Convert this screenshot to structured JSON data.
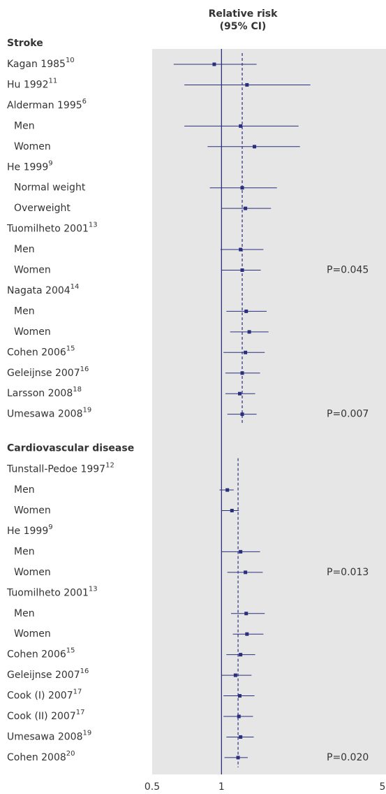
{
  "chart_data": {
    "type": "forest",
    "title": "Relative risk",
    "subtitle": "(95% CI)",
    "log_scale": true,
    "xlim": [
      0.5,
      5
    ],
    "xticks": [
      0.5,
      1,
      5
    ],
    "reference": 1,
    "color": "#2a2f7c",
    "background": "#e6e6e6",
    "groups": [
      {
        "name": "Stroke",
        "pooled": 1.23,
        "studies": [
          {
            "label": "Kagan 1985",
            "ref": "10",
            "rr": 0.93,
            "ci": [
              0.62,
              1.42
            ]
          },
          {
            "label": "Hu 1992",
            "ref": "11",
            "rr": 1.29,
            "ci": [
              0.69,
              2.43
            ]
          },
          {
            "label": "Alderman 1995",
            "ref": "6",
            "subgroups": [
              {
                "label": "Men",
                "rr": 1.21,
                "ci": [
                  0.69,
                  2.16
                ]
              },
              {
                "label": "Women",
                "rr": 1.39,
                "ci": [
                  0.87,
                  2.19
                ]
              }
            ]
          },
          {
            "label": "He 1999",
            "ref": "9",
            "subgroups": [
              {
                "label": "Normal weight",
                "rr": 1.23,
                "ci": [
                  0.89,
                  1.74
                ]
              },
              {
                "label": "Overweight",
                "rr": 1.27,
                "ci": [
                  1.0,
                  1.64
                ]
              }
            ]
          },
          {
            "label": "Tuomilheto 2001",
            "ref": "13",
            "subgroups": [
              {
                "label": "Men",
                "rr": 1.21,
                "ci": [
                  0.99,
                  1.52
                ]
              },
              {
                "label": "Women",
                "rr": 1.23,
                "ci": [
                  1.0,
                  1.48
                ],
                "p_value": "P=0.045"
              }
            ]
          },
          {
            "label": "Nagata 2004",
            "ref": "14",
            "subgroups": [
              {
                "label": "Men",
                "rr": 1.28,
                "ci": [
                  1.05,
                  1.57
                ]
              },
              {
                "label": "Women",
                "rr": 1.32,
                "ci": [
                  1.09,
                  1.6
                ]
              }
            ]
          },
          {
            "label": "Cohen 2006",
            "ref": "15",
            "rr": 1.27,
            "ci": [
              1.02,
              1.54
            ]
          },
          {
            "label": "Geleijnse 2007",
            "ref": "16",
            "rr": 1.23,
            "ci": [
              1.04,
              1.47
            ]
          },
          {
            "label": "Larsson 2008",
            "ref": "18",
            "rr": 1.2,
            "ci": [
              1.04,
              1.4
            ]
          },
          {
            "label": "Umesawa 2008",
            "ref": "19",
            "rr": 1.23,
            "ci": [
              1.06,
              1.42
            ],
            "p_value": "P=0.007"
          }
        ]
      },
      {
        "name": "Cardiovascular disease",
        "pooled": 1.18,
        "studies": [
          {
            "label": "Tunstall-Pedoe 1997",
            "ref": "12",
            "subgroups": [
              {
                "label": "Men",
                "rr": 1.06,
                "ci": [
                  0.98,
                  1.13
                ]
              },
              {
                "label": "Women",
                "rr": 1.11,
                "ci": [
                  1.0,
                  1.19
                ]
              }
            ]
          },
          {
            "label": "He 1999",
            "ref": "9",
            "subgroups": [
              {
                "label": "Men",
                "rr": 1.21,
                "ci": [
                  1.0,
                  1.47
                ]
              },
              {
                "label": "Women",
                "rr": 1.27,
                "ci": [
                  1.06,
                  1.51
                ],
                "p_value": "P=0.013"
              }
            ]
          },
          {
            "label": "Tuomilheto 2001",
            "ref": "13",
            "subgroups": [
              {
                "label": "Men",
                "rr": 1.28,
                "ci": [
                  1.1,
                  1.54
                ]
              },
              {
                "label": "Women",
                "rr": 1.29,
                "ci": [
                  1.12,
                  1.52
                ]
              }
            ]
          },
          {
            "label": "Cohen 2006",
            "ref": "15",
            "rr": 1.21,
            "ci": [
              1.05,
              1.4
            ]
          },
          {
            "label": "Geleijnse 2007",
            "ref": "16",
            "rr": 1.15,
            "ci": [
              1.0,
              1.35
            ]
          },
          {
            "label": "Cook (I) 2007",
            "ref": "17",
            "rr": 1.2,
            "ci": [
              1.02,
              1.39
            ]
          },
          {
            "label": "Cook (II) 2007",
            "ref": "17",
            "rr": 1.19,
            "ci": [
              1.02,
              1.37
            ]
          },
          {
            "label": "Umesawa 2008",
            "ref": "19",
            "rr": 1.21,
            "ci": [
              1.05,
              1.38
            ]
          },
          {
            "label": "Cohen 2008",
            "ref": "20",
            "rr": 1.18,
            "ci": [
              1.03,
              1.3
            ],
            "p_value": "P=0.020"
          }
        ]
      }
    ]
  }
}
